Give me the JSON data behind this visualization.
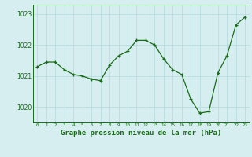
{
  "x": [
    0,
    1,
    2,
    3,
    4,
    5,
    6,
    7,
    8,
    9,
    10,
    11,
    12,
    13,
    14,
    15,
    16,
    17,
    18,
    19,
    20,
    21,
    22,
    23
  ],
  "y": [
    1021.3,
    1021.45,
    1021.45,
    1021.2,
    1021.05,
    1021.0,
    1020.9,
    1020.85,
    1021.35,
    1021.65,
    1021.8,
    1022.15,
    1022.15,
    1022.0,
    1021.55,
    1021.2,
    1021.05,
    1020.25,
    1019.8,
    1019.85,
    1021.1,
    1021.65,
    1022.65,
    1022.9
  ],
  "line_color": "#1a6b1a",
  "marker": "+",
  "bg_color": "#d6eef0",
  "grid_color": "#b8dde0",
  "xlabel": "Graphe pression niveau de la mer (hPa)",
  "yticks": [
    1020,
    1021,
    1022,
    1023
  ],
  "xticks": [
    0,
    1,
    2,
    3,
    4,
    5,
    6,
    7,
    8,
    9,
    10,
    11,
    12,
    13,
    14,
    15,
    16,
    17,
    18,
    19,
    20,
    21,
    22,
    23
  ],
  "ylim": [
    1019.5,
    1023.3
  ],
  "xlim": [
    -0.5,
    23.5
  ]
}
